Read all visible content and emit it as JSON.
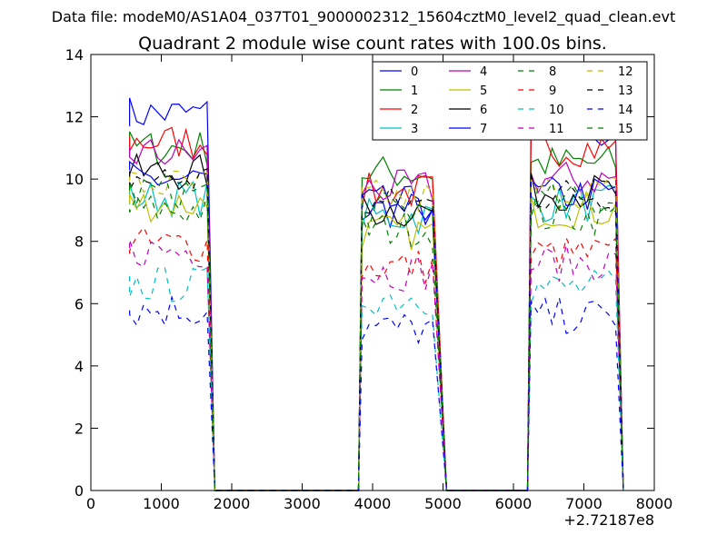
{
  "figure": {
    "suptitle": "Data file: modeM0/AS1A04_037T01_9000002312_15604cztM0_level2_quad_clean.evt",
    "offset_label": "+2.72187e8"
  },
  "chart_data": {
    "type": "line",
    "title": "Quadrant 2 module wise count rates with 100.0s bins.",
    "xlabel": "",
    "ylabel": "",
    "xlim": [
      0,
      8000
    ],
    "ylim": [
      0,
      14
    ],
    "x_offset": 272187000,
    "xticks": [
      0,
      1000,
      2000,
      3000,
      4000,
      5000,
      6000,
      7000,
      8000
    ],
    "yticks": [
      0,
      2,
      4,
      6,
      8,
      10,
      12,
      14
    ],
    "grid": false,
    "legend_position": "top-right",
    "segments": [
      {
        "start": 550,
        "end": 1650,
        "drop_end": 1760
      },
      {
        "start": 3850,
        "end": 4850,
        "drop_end": 5050
      },
      {
        "start": 6250,
        "end": 7450,
        "drop_end": 7560
      }
    ],
    "zero_x": [
      1760,
      3800,
      5050,
      6150,
      7560
    ],
    "series": [
      {
        "name": "0",
        "color": "#0000ff",
        "dash": "solid",
        "levels": [
          12.1,
          9.0,
          11.5
        ]
      },
      {
        "name": "1",
        "color": "#008000",
        "dash": "solid",
        "levels": [
          11.0,
          10.2,
          10.5
        ]
      },
      {
        "name": "2",
        "color": "#ff0000",
        "dash": "solid",
        "levels": [
          11.2,
          9.6,
          11.0
        ]
      },
      {
        "name": "3",
        "color": "#00bfbf",
        "dash": "solid",
        "levels": [
          9.4,
          8.8,
          9.2
        ]
      },
      {
        "name": "4",
        "color": "#bf00bf",
        "dash": "solid",
        "levels": [
          10.8,
          9.7,
          10.0
        ]
      },
      {
        "name": "5",
        "color": "#bfbf00",
        "dash": "solid",
        "levels": [
          9.2,
          8.3,
          9.0
        ]
      },
      {
        "name": "6",
        "color": "#000000",
        "dash": "solid",
        "levels": [
          10.2,
          9.0,
          9.6
        ]
      },
      {
        "name": "7",
        "color": "#0000ff",
        "dash": "solid",
        "levels": [
          10.0,
          9.2,
          9.5
        ]
      },
      {
        "name": "8",
        "color": "#008000",
        "dash": "dashed",
        "levels": [
          9.0,
          8.4,
          8.8
        ]
      },
      {
        "name": "9",
        "color": "#ff0000",
        "dash": "dashed",
        "levels": [
          7.9,
          7.2,
          7.6
        ]
      },
      {
        "name": "10",
        "color": "#00bfbf",
        "dash": "dashed",
        "levels": [
          6.6,
          6.2,
          6.5
        ]
      },
      {
        "name": "11",
        "color": "#bf00bf",
        "dash": "dashed",
        "levels": [
          7.7,
          7.0,
          7.3
        ]
      },
      {
        "name": "12",
        "color": "#bfbf00",
        "dash": "dashed",
        "levels": [
          9.8,
          9.4,
          9.6
        ]
      },
      {
        "name": "13",
        "color": "#000000",
        "dash": "dashed",
        "levels": [
          10.0,
          9.2,
          9.5
        ]
      },
      {
        "name": "14",
        "color": "#0000ff",
        "dash": "dashed",
        "levels": [
          5.8,
          5.2,
          5.6
        ]
      },
      {
        "name": "15",
        "color": "#008000",
        "dash": "dashed",
        "levels": [
          9.6,
          9.0,
          9.3
        ]
      }
    ]
  }
}
